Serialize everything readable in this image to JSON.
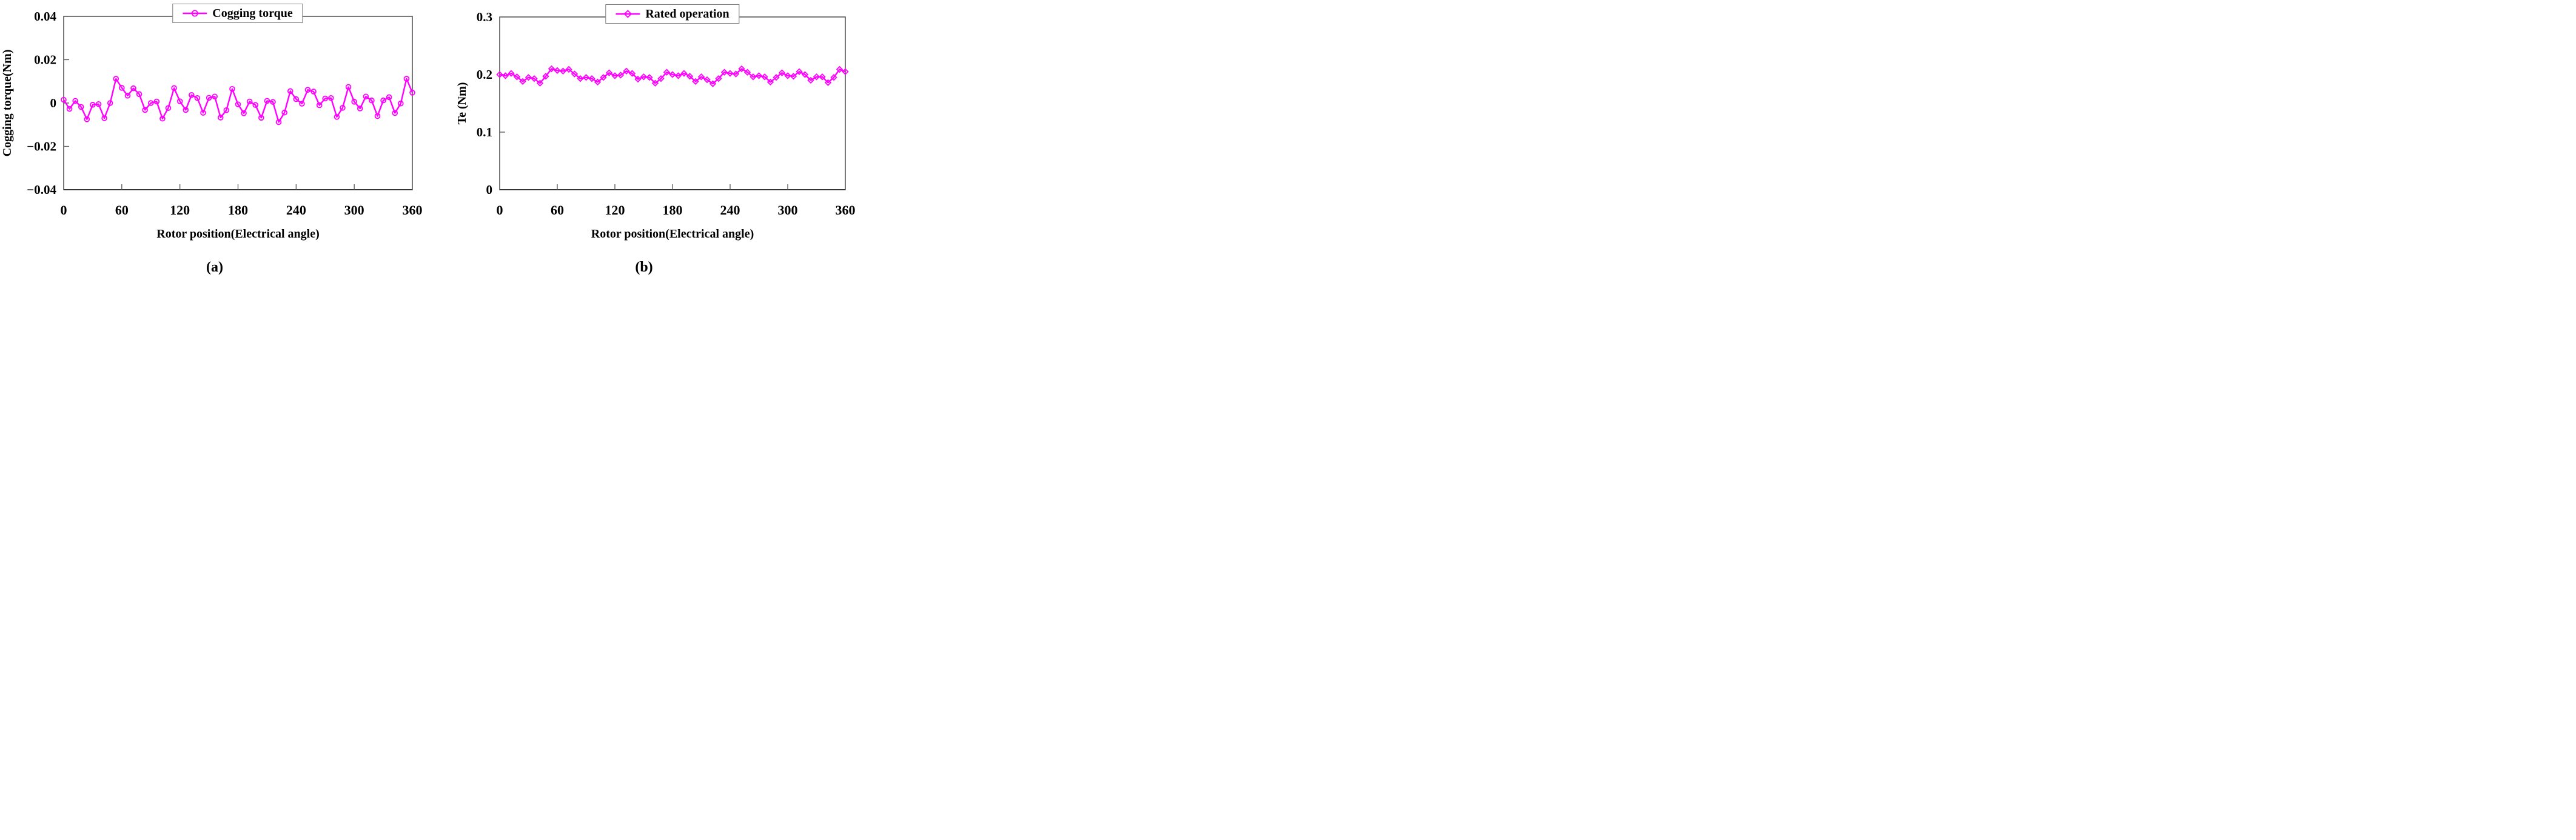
{
  "figure": {
    "panels": [
      {
        "caption": "(a)",
        "legend": {
          "label": "Cogging torque",
          "marker": "circle"
        }
      },
      {
        "caption": "(b)",
        "legend": {
          "label": "Rated operation",
          "marker": "diamond"
        }
      }
    ]
  },
  "colors": {
    "series": "#FF00FF",
    "frame": "#4d4d4d",
    "tick": "#555555",
    "text": "#000000",
    "legend_border": "#7a7a7a"
  },
  "chart_data": [
    {
      "type": "line",
      "title": "",
      "legend": "Cogging torque",
      "marker": "circle",
      "legend_position": "top-center",
      "grid": false,
      "xlabel": "Rotor position(Electrical angle)",
      "ylabel": "Cogging torque(Nm)",
      "xlim": [
        0,
        360
      ],
      "ylim": [
        -0.04,
        0.04
      ],
      "x_ticks": [
        0,
        60,
        120,
        180,
        240,
        300,
        360
      ],
      "x_tick_labels": [
        "0",
        "60",
        "120",
        "180",
        "240",
        "300",
        "360"
      ],
      "y_ticks": [
        0.04,
        0.02,
        0,
        -0.02,
        -0.04
      ],
      "y_tick_labels": [
        "0.04",
        "0.02",
        "0",
        "−0.02",
        "−0.04"
      ],
      "caption": "(a)",
      "x": [
        0,
        6,
        12,
        18,
        24,
        30,
        36,
        42,
        48,
        54,
        60,
        66,
        72,
        78,
        84,
        90,
        96,
        102,
        108,
        114,
        120,
        126,
        132,
        138,
        144,
        150,
        156,
        162,
        168,
        174,
        180,
        186,
        192,
        198,
        204,
        210,
        216,
        222,
        228,
        234,
        240,
        246,
        252,
        258,
        264,
        270,
        276,
        282,
        288,
        294,
        300,
        306,
        312,
        318,
        324,
        330,
        336,
        342,
        348,
        354,
        360
      ],
      "y": [
        0.0015,
        -0.0027,
        0.001,
        -0.0018,
        -0.0075,
        -0.0008,
        -0.0005,
        -0.007,
        0,
        0.0112,
        0.007,
        0.0034,
        0.0068,
        0.0041,
        -0.0032,
        0,
        0.0007,
        -0.0072,
        -0.0023,
        0.0069,
        0.0008,
        -0.0032,
        0.0037,
        0.0023,
        -0.0045,
        0.0024,
        0.003,
        -0.0067,
        -0.0033,
        0.0065,
        -0.0006,
        -0.0047,
        0.0007,
        -0.0009,
        -0.0068,
        0.001,
        0.0005,
        -0.0088,
        -0.0044,
        0.0055,
        0.0018,
        -0.0003,
        0.0061,
        0.0053,
        -0.001,
        0.0021,
        0.0023,
        -0.0064,
        -0.0022,
        0.0074,
        0.0006,
        -0.0025,
        0.003,
        0.0012,
        -0.006,
        0.0012,
        0.0027,
        -0.0046,
        -0.0002,
        0.0112,
        0.0048
      ]
    },
    {
      "type": "line",
      "title": "",
      "legend": "Rated operation",
      "marker": "diamond",
      "legend_position": "top-center",
      "grid": false,
      "xlabel": "Rotor position(Electrical angle)",
      "ylabel": "Te (Nm)",
      "xlim": [
        0,
        360
      ],
      "ylim": [
        0,
        0.3
      ],
      "x_ticks": [
        0,
        60,
        120,
        180,
        240,
        300,
        360
      ],
      "x_tick_labels": [
        "0",
        "60",
        "120",
        "180",
        "240",
        "300",
        "360"
      ],
      "y_ticks": [
        0.3,
        0.2,
        0.1,
        0
      ],
      "y_tick_labels": [
        "0.3",
        "0.2",
        "0.1",
        "0"
      ],
      "caption": "(b)",
      "x": [
        0,
        6,
        12,
        18,
        24,
        30,
        36,
        42,
        48,
        54,
        60,
        66,
        72,
        78,
        84,
        90,
        96,
        102,
        108,
        114,
        120,
        126,
        132,
        138,
        144,
        150,
        156,
        162,
        168,
        174,
        180,
        186,
        192,
        198,
        204,
        210,
        216,
        222,
        228,
        234,
        240,
        246,
        252,
        258,
        264,
        270,
        276,
        282,
        288,
        294,
        300,
        306,
        312,
        318,
        324,
        330,
        336,
        342,
        348,
        354,
        360
      ],
      "y": [
        0.2,
        0.198,
        0.202,
        0.196,
        0.188,
        0.195,
        0.193,
        0.185,
        0.197,
        0.21,
        0.207,
        0.206,
        0.209,
        0.201,
        0.193,
        0.195,
        0.193,
        0.187,
        0.195,
        0.203,
        0.198,
        0.199,
        0.206,
        0.202,
        0.192,
        0.196,
        0.195,
        0.185,
        0.193,
        0.204,
        0.2,
        0.198,
        0.202,
        0.197,
        0.188,
        0.196,
        0.191,
        0.184,
        0.193,
        0.204,
        0.202,
        0.201,
        0.21,
        0.204,
        0.196,
        0.198,
        0.196,
        0.187,
        0.195,
        0.203,
        0.198,
        0.197,
        0.205,
        0.2,
        0.19,
        0.196,
        0.196,
        0.186,
        0.195,
        0.209,
        0.205
      ]
    }
  ]
}
